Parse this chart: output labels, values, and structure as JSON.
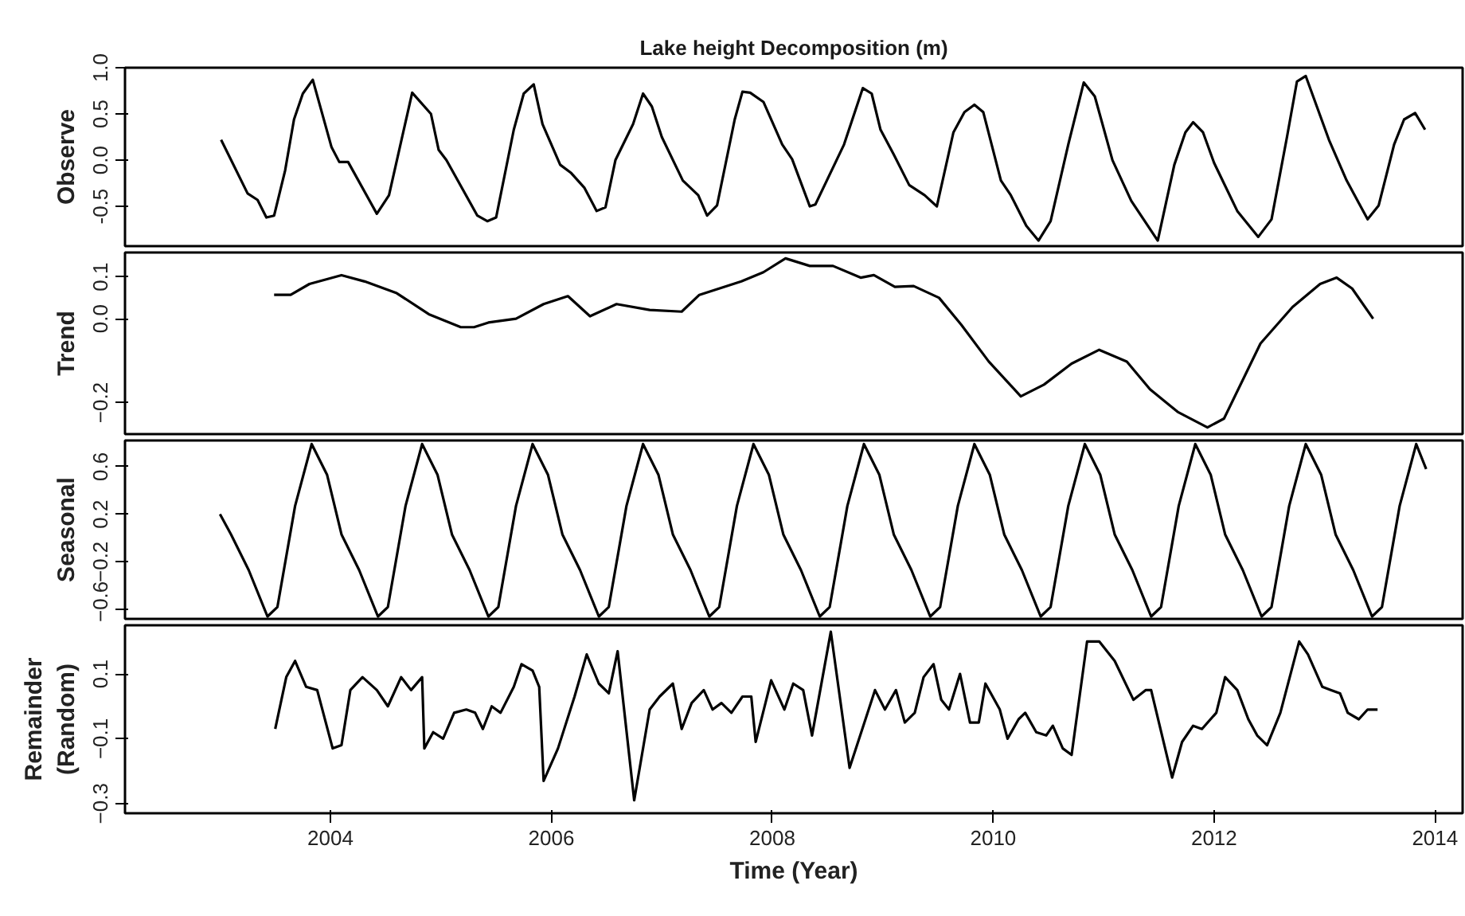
{
  "chart_data": [
    {
      "type": "line",
      "title": "Lake height Decomposition (m)",
      "ylabel": "Observe",
      "xlim": [
        2002.14,
        2014.25
      ],
      "xticks": [
        2004,
        2006,
        2008,
        2010,
        2012,
        2014
      ],
      "ylim": [
        -0.93,
        1.0
      ],
      "yticks": [
        {
          "value": -0.5,
          "label": "-0.5"
        },
        {
          "value": 0,
          "label": "0.0"
        },
        {
          "value": 0.5,
          "label": "0.5"
        },
        {
          "value": 1.0,
          "label": "1.0"
        }
      ],
      "tick_labels": "y",
      "grid": false,
      "x": [
        2003.01,
        2003.25,
        2003.34,
        2003.42,
        2003.49,
        2003.59,
        2003.67,
        2003.75,
        2003.84,
        2004.01,
        2004.08,
        2004.16,
        2004.42,
        2004.53,
        2004.74,
        2004.91,
        2004.98,
        2005.05,
        2005.33,
        2005.42,
        2005.5,
        2005.66,
        2005.75,
        2005.84,
        2005.92,
        2006.08,
        2006.18,
        2006.3,
        2006.41,
        2006.49,
        2006.58,
        2006.74,
        2006.83,
        2006.91,
        2007.0,
        2007.19,
        2007.33,
        2007.41,
        2007.5,
        2007.66,
        2007.73,
        2007.8,
        2007.92,
        2008.09,
        2008.18,
        2008.34,
        2008.39,
        2008.65,
        2008.82,
        2008.9,
        2008.98,
        2009.1,
        2009.24,
        2009.38,
        2009.49,
        2009.64,
        2009.74,
        2009.83,
        2009.91,
        2010.07,
        2010.16,
        2010.3,
        2010.41,
        2010.52,
        2010.68,
        2010.82,
        2010.92,
        2011.08,
        2011.25,
        2011.49,
        2011.64,
        2011.74,
        2011.81,
        2011.9,
        2012.0,
        2012.21,
        2012.4,
        2012.52,
        2012.66,
        2012.75,
        2012.83,
        2013.04,
        2013.2,
        2013.39,
        2013.49,
        2013.63,
        2013.72,
        2013.82,
        2013.91
      ],
      "series": [
        {
          "color": "#000000",
          "values": [
            0.22,
            -0.36,
            -0.43,
            -0.62,
            -0.6,
            -0.11,
            0.44,
            0.72,
            0.87,
            0.14,
            -0.02,
            -0.02,
            -0.58,
            -0.38,
            0.73,
            0.5,
            0.11,
            0.0,
            -0.6,
            -0.66,
            -0.62,
            0.33,
            0.72,
            0.82,
            0.39,
            -0.05,
            -0.14,
            -0.3,
            -0.55,
            -0.51,
            0.0,
            0.39,
            0.72,
            0.58,
            0.25,
            -0.22,
            -0.38,
            -0.6,
            -0.49,
            0.44,
            0.74,
            0.73,
            0.63,
            0.17,
            0.01,
            -0.5,
            -0.48,
            0.17,
            0.78,
            0.72,
            0.33,
            0.06,
            -0.27,
            -0.38,
            -0.5,
            0.3,
            0.52,
            0.6,
            0.52,
            -0.22,
            -0.38,
            -0.71,
            -0.87,
            -0.66,
            0.17,
            0.84,
            0.69,
            0.0,
            -0.44,
            -0.87,
            -0.05,
            0.3,
            0.41,
            0.3,
            -0.03,
            -0.55,
            -0.83,
            -0.64,
            0.25,
            0.85,
            0.91,
            0.22,
            -0.22,
            -0.64,
            -0.49,
            0.17,
            0.44,
            0.51,
            0.33
          ]
        }
      ]
    },
    {
      "type": "line",
      "ylabel": "Trend",
      "xlim": [
        2002.14,
        2014.25
      ],
      "xticks": [
        2004,
        2006,
        2008,
        2010,
        2012,
        2014
      ],
      "ylim": [
        -0.275,
        0.158
      ],
      "yticks": [
        -0.2,
        {
          "value": 0,
          "label": "0.0"
        },
        0.1
      ],
      "tick_labels": "y",
      "grid": false,
      "x": [
        2003.49,
        2003.64,
        2003.81,
        2004.1,
        2004.31,
        2004.6,
        2004.89,
        2005.18,
        2005.3,
        2005.43,
        2005.68,
        2005.93,
        2006.15,
        2006.35,
        2006.59,
        2006.89,
        2007.18,
        2007.34,
        2007.72,
        2007.92,
        2008.12,
        2008.34,
        2008.55,
        2008.8,
        2008.92,
        2009.11,
        2009.28,
        2009.51,
        2009.71,
        2009.96,
        2010.25,
        2010.46,
        2010.71,
        2010.96,
        2011.21,
        2011.42,
        2011.67,
        2011.94,
        2012.09,
        2012.42,
        2012.71,
        2012.96,
        2013.11,
        2013.25,
        2013.44
      ],
      "series": [
        {
          "color": "#000000",
          "values": [
            0.057,
            0.057,
            0.083,
            0.104,
            0.089,
            0.061,
            0.011,
            -0.02,
            -0.02,
            -0.009,
            0.0,
            0.035,
            0.054,
            0.006,
            0.035,
            0.021,
            0.017,
            0.057,
            0.089,
            0.111,
            0.144,
            0.126,
            0.126,
            0.098,
            0.104,
            0.076,
            0.078,
            0.05,
            -0.014,
            -0.102,
            -0.185,
            -0.157,
            -0.107,
            -0.074,
            -0.102,
            -0.168,
            -0.222,
            -0.259,
            -0.238,
            -0.059,
            0.028,
            0.083,
            0.098,
            0.072,
            0.0
          ]
        }
      ]
    },
    {
      "type": "line",
      "ylabel": "Seasonal",
      "xlim": [
        2002.14,
        2014.25
      ],
      "xticks": [
        2004,
        2006,
        2008,
        2010,
        2012,
        2014
      ],
      "ylim": [
        -0.68,
        0.82
      ],
      "yticks": [
        -0.6,
        -0.2,
        0.2,
        0.6
      ],
      "tick_labels": "y",
      "grid": false,
      "x": [
        2003.0,
        2003.1,
        2003.26,
        2003.43,
        2003.52,
        2003.68,
        2003.83,
        2003.97,
        2004.1,
        2004.26,
        2004.43,
        2004.52,
        2004.68,
        2004.83,
        2004.97,
        2005.1,
        2005.26,
        2005.43,
        2005.52,
        2005.68,
        2005.83,
        2005.97,
        2006.1,
        2006.26,
        2006.43,
        2006.52,
        2006.68,
        2006.83,
        2006.97,
        2007.1,
        2007.26,
        2007.43,
        2007.52,
        2007.68,
        2007.83,
        2007.97,
        2008.1,
        2008.26,
        2008.43,
        2008.52,
        2008.68,
        2008.83,
        2008.97,
        2009.1,
        2009.26,
        2009.43,
        2009.52,
        2009.68,
        2009.83,
        2009.97,
        2010.1,
        2010.26,
        2010.43,
        2010.52,
        2010.68,
        2010.83,
        2010.97,
        2011.1,
        2011.26,
        2011.43,
        2011.52,
        2011.68,
        2011.83,
        2011.97,
        2012.1,
        2012.26,
        2012.43,
        2012.52,
        2012.68,
        2012.83,
        2012.97,
        2013.1,
        2013.26,
        2013.43,
        2013.52,
        2013.68,
        2013.83,
        2013.92
      ],
      "series": [
        {
          "color": "#000000",
          "values": [
            0.2,
            0.03,
            -0.27,
            -0.66,
            -0.58,
            0.27,
            0.79,
            0.53,
            0.03,
            -0.27,
            -0.66,
            -0.58,
            0.27,
            0.79,
            0.53,
            0.03,
            -0.27,
            -0.66,
            -0.58,
            0.27,
            0.79,
            0.53,
            0.03,
            -0.27,
            -0.66,
            -0.58,
            0.27,
            0.79,
            0.53,
            0.03,
            -0.27,
            -0.66,
            -0.58,
            0.27,
            0.79,
            0.53,
            0.03,
            -0.27,
            -0.66,
            -0.58,
            0.27,
            0.79,
            0.53,
            0.03,
            -0.27,
            -0.66,
            -0.58,
            0.27,
            0.79,
            0.53,
            0.03,
            -0.27,
            -0.66,
            -0.58,
            0.27,
            0.79,
            0.53,
            0.03,
            -0.27,
            -0.66,
            -0.58,
            0.27,
            0.79,
            0.53,
            0.03,
            -0.27,
            -0.66,
            -0.58,
            0.27,
            0.79,
            0.53,
            0.03,
            -0.27,
            -0.66,
            -0.58,
            0.27,
            0.79,
            0.58
          ]
        }
      ]
    },
    {
      "type": "line",
      "ylabel": "Remainder\n(Random)",
      "xlabel": "Time (Year)",
      "xlim": [
        2002.14,
        2014.25
      ],
      "xticks": [
        2004,
        2006,
        2008,
        2010,
        2012,
        2014
      ],
      "ylim": [
        -0.33,
        0.25
      ],
      "yticks": [
        -0.3,
        -0.1,
        0.1
      ],
      "grid": false,
      "x": [
        2003.5,
        2003.6,
        2003.68,
        2003.78,
        2003.88,
        2004.02,
        2004.1,
        2004.18,
        2004.29,
        2004.42,
        2004.52,
        2004.64,
        2004.73,
        2004.83,
        2004.85,
        2004.93,
        2005.02,
        2005.12,
        2005.23,
        2005.31,
        2005.38,
        2005.46,
        2005.54,
        2005.66,
        2005.73,
        2005.83,
        2005.89,
        2005.93,
        2006.06,
        2006.21,
        2006.32,
        2006.43,
        2006.52,
        2006.6,
        2006.75,
        2006.89,
        2006.98,
        2007.1,
        2007.18,
        2007.27,
        2007.38,
        2007.46,
        2007.54,
        2007.63,
        2007.73,
        2007.81,
        2007.85,
        2007.99,
        2008.11,
        2008.19,
        2008.28,
        2008.36,
        2008.53,
        2008.7,
        2008.93,
        2009.02,
        2009.12,
        2009.2,
        2009.29,
        2009.37,
        2009.46,
        2009.53,
        2009.6,
        2009.7,
        2009.79,
        2009.87,
        2009.93,
        2010.06,
        2010.13,
        2010.23,
        2010.29,
        2010.39,
        2010.48,
        2010.54,
        2010.63,
        2010.71,
        2010.85,
        2010.96,
        2011.1,
        2011.27,
        2011.38,
        2011.43,
        2011.62,
        2011.71,
        2011.81,
        2011.89,
        2012.02,
        2012.1,
        2012.21,
        2012.31,
        2012.39,
        2012.48,
        2012.6,
        2012.77,
        2012.85,
        2012.98,
        2013.06,
        2013.14,
        2013.21,
        2013.31,
        2013.39,
        2013.48
      ],
      "series": [
        {
          "color": "#000000",
          "values": [
            -0.07,
            0.09,
            0.14,
            0.06,
            0.05,
            -0.13,
            -0.12,
            0.05,
            0.09,
            0.05,
            0.0,
            0.09,
            0.05,
            0.09,
            -0.13,
            -0.08,
            -0.1,
            -0.02,
            -0.01,
            -0.02,
            -0.07,
            0.0,
            -0.02,
            0.06,
            0.13,
            0.11,
            0.06,
            -0.23,
            -0.13,
            0.03,
            0.16,
            0.07,
            0.04,
            0.17,
            -0.29,
            -0.01,
            0.03,
            0.07,
            -0.07,
            0.01,
            0.05,
            -0.01,
            0.01,
            -0.02,
            0.03,
            0.03,
            -0.11,
            0.08,
            -0.01,
            0.07,
            0.05,
            -0.09,
            0.23,
            -0.19,
            0.05,
            -0.01,
            0.05,
            -0.05,
            -0.02,
            0.09,
            0.13,
            0.02,
            -0.01,
            0.1,
            -0.05,
            -0.05,
            0.07,
            -0.01,
            -0.1,
            -0.04,
            -0.02,
            -0.08,
            -0.09,
            -0.06,
            -0.13,
            -0.15,
            0.2,
            0.2,
            0.14,
            0.02,
            0.05,
            0.05,
            -0.22,
            -0.11,
            -0.06,
            -0.07,
            -0.02,
            0.09,
            0.05,
            -0.04,
            -0.09,
            -0.12,
            -0.02,
            0.2,
            0.16,
            0.06,
            0.05,
            0.04,
            -0.02,
            -0.04,
            -0.01,
            -0.01
          ]
        }
      ]
    }
  ]
}
